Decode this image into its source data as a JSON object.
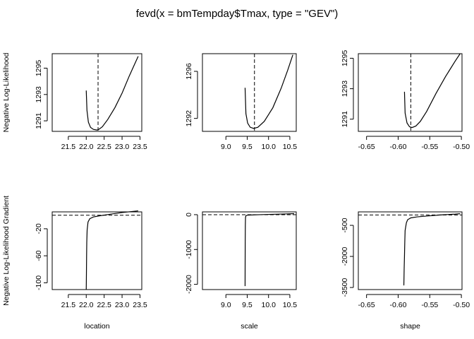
{
  "figure": {
    "title": "fevd(x = bmTempday$Tmax, type = \"GEV\")"
  },
  "chart_data": [
    {
      "type": "line",
      "id": "nll-location",
      "xlabel": "",
      "ylabel": "Negative Log-Likelihood",
      "xlim": [
        21.05,
        23.55
      ],
      "ylim": [
        1290.2,
        1296.1
      ],
      "xticks": [
        21.5,
        22.0,
        22.5,
        23.0,
        23.5
      ],
      "xtick_labels": [
        "21.5",
        "22.0",
        "22.5",
        "23.0",
        "23.5"
      ],
      "yticks": [
        1291,
        1293,
        1295
      ],
      "ytick_labels": [
        "1291",
        "1293",
        "1295"
      ],
      "vline": 22.33,
      "x": [
        22.0,
        22.02,
        22.06,
        22.12,
        22.2,
        22.3,
        22.35,
        22.45,
        22.6,
        22.8,
        23.0,
        23.2,
        23.35,
        23.45
      ],
      "y": [
        1293.3,
        1291.8,
        1290.9,
        1290.5,
        1290.35,
        1290.3,
        1290.35,
        1290.55,
        1291.1,
        1292.0,
        1293.1,
        1294.4,
        1295.3,
        1295.9
      ]
    },
    {
      "type": "line",
      "id": "nll-scale",
      "xlabel": "",
      "ylabel": "",
      "xlim": [
        8.45,
        10.65
      ],
      "ylim": [
        1290.9,
        1297.5
      ],
      "xticks": [
        9.0,
        9.5,
        10.0,
        10.5
      ],
      "xtick_labels": [
        "9.0",
        "9.5",
        "10.0",
        "10.5"
      ],
      "yticks": [
        1292,
        1296
      ],
      "ytick_labels": [
        "1292",
        "1296"
      ],
      "vline": 9.67,
      "x": [
        9.45,
        9.47,
        9.51,
        9.57,
        9.65,
        9.75,
        9.9,
        10.1,
        10.3,
        10.45,
        10.57
      ],
      "y": [
        1294.6,
        1292.4,
        1291.6,
        1291.25,
        1291.15,
        1291.25,
        1291.75,
        1292.9,
        1294.6,
        1296.1,
        1297.4
      ]
    },
    {
      "type": "line",
      "id": "nll-shape",
      "xlabel": "",
      "ylabel": "",
      "xlim": [
        -0.663,
        -0.499
      ],
      "ylim": [
        1290.2,
        1295.3
      ],
      "xticks": [
        -0.65,
        -0.6,
        -0.55,
        -0.5
      ],
      "xtick_labels": [
        "-0.65",
        "-0.60",
        "-0.55",
        "-0.50"
      ],
      "yticks": [
        1291,
        1293,
        1295
      ],
      "ytick_labels": [
        "1291",
        "1293",
        "1295"
      ],
      "vline": -0.58,
      "x": [
        -0.59,
        -0.589,
        -0.586,
        -0.582,
        -0.578,
        -0.572,
        -0.565,
        -0.555,
        -0.54,
        -0.525,
        -0.51,
        -0.502
      ],
      "y": [
        1292.8,
        1291.4,
        1290.75,
        1290.5,
        1290.45,
        1290.55,
        1290.85,
        1291.5,
        1292.7,
        1293.8,
        1294.8,
        1295.3
      ]
    },
    {
      "type": "line",
      "id": "grad-location",
      "xlabel": "location",
      "ylabel": "Negative Log-Likelihood Gradient",
      "xlim": [
        21.05,
        23.55
      ],
      "ylim": [
        -110,
        5
      ],
      "xticks": [
        21.5,
        22.0,
        22.5,
        23.0,
        23.5
      ],
      "xtick_labels": [
        "21.5",
        "22.0",
        "22.5",
        "23.0",
        "23.5"
      ],
      "yticks": [
        -100,
        -60,
        -20
      ],
      "ytick_labels": [
        "-100",
        "-60",
        "-20"
      ],
      "hline": 0,
      "x": [
        22.0,
        22.005,
        22.01,
        22.015,
        22.025,
        22.05,
        22.1,
        22.2,
        22.35,
        22.6,
        23.0,
        23.45
      ],
      "y": [
        -110,
        -88,
        -60,
        -40,
        -22,
        -10,
        -5,
        -2.5,
        -1,
        1,
        4,
        6.5
      ]
    },
    {
      "type": "line",
      "id": "grad-scale",
      "xlabel": "scale",
      "ylabel": "",
      "xlim": [
        8.45,
        10.65
      ],
      "ylim": [
        -2150,
        80
      ],
      "xticks": [
        9.0,
        9.5,
        10.0,
        10.5
      ],
      "xtick_labels": [
        "9.0",
        "9.5",
        "10.0",
        "10.5"
      ],
      "yticks": [
        -2000,
        -1000,
        0
      ],
      "ytick_labels": [
        "-2000",
        "-1000",
        "0"
      ],
      "hline": 0,
      "x": [
        9.45,
        9.451,
        9.453,
        9.456,
        9.46,
        9.47,
        9.5,
        9.6,
        9.8,
        10.1,
        10.4,
        10.6
      ],
      "y": [
        -2050,
        -1500,
        -800,
        -300,
        -80,
        -30,
        -15,
        -8,
        0,
        10,
        20,
        30
      ]
    },
    {
      "type": "line",
      "id": "grad-shape",
      "xlabel": "shape",
      "ylabel": "",
      "xlim": [
        -0.663,
        -0.499
      ],
      "ylim": [
        -3600,
        150
      ],
      "xticks": [
        -0.65,
        -0.6,
        -0.55,
        -0.5
      ],
      "xtick_labels": [
        "-0.65",
        "-0.60",
        "-0.55",
        "-0.50"
      ],
      "yticks": [
        -3500,
        -2000,
        -500
      ],
      "ytick_labels": [
        "-3500",
        "-2000",
        "-500"
      ],
      "hline": 0,
      "x": [
        -0.591,
        -0.5908,
        -0.5905,
        -0.59,
        -0.5895,
        -0.589,
        -0.587,
        -0.585,
        -0.58,
        -0.57,
        -0.55,
        -0.53,
        -0.51,
        -0.502
      ],
      "y": [
        -3400,
        -3100,
        -2600,
        -2000,
        -1300,
        -750,
        -380,
        -230,
        -140,
        -90,
        -40,
        10,
        40,
        60
      ]
    }
  ]
}
